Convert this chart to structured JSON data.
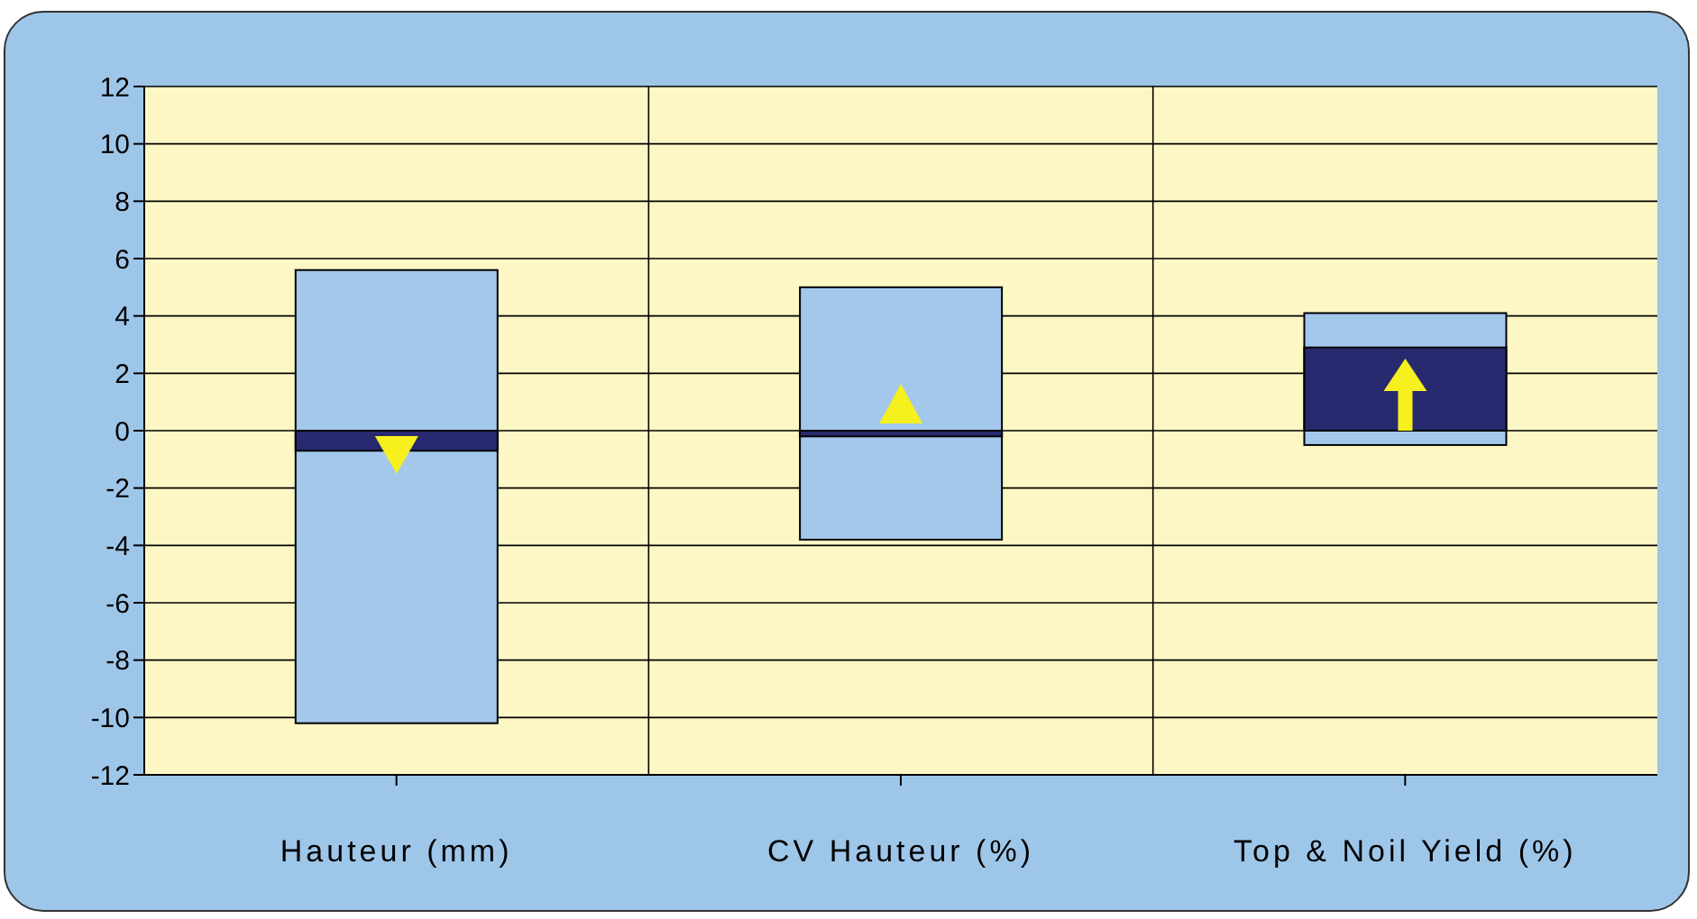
{
  "chart_data": {
    "type": "bar",
    "categories": [
      "Hauteur  (mm)",
      "CV Hauteur (%)",
      "Top &  Noil Yield (%)"
    ],
    "series": [
      {
        "color": "#a3c8ec",
        "base": [
          -10.2,
          -3.8,
          -0.5
        ],
        "values": [
          15.8,
          8.8,
          4.6
        ]
      },
      {
        "color": "#272a6e",
        "base": [
          -0.7,
          -0.2,
          0
        ],
        "values": [
          0.7,
          0.2,
          2.9
        ]
      }
    ],
    "ylim": [
      -12,
      12
    ],
    "yticks": [
      -12,
      -10,
      -8,
      -6,
      -4,
      -2,
      0,
      2,
      4,
      6,
      8,
      10,
      12
    ],
    "grid": true
  }
}
